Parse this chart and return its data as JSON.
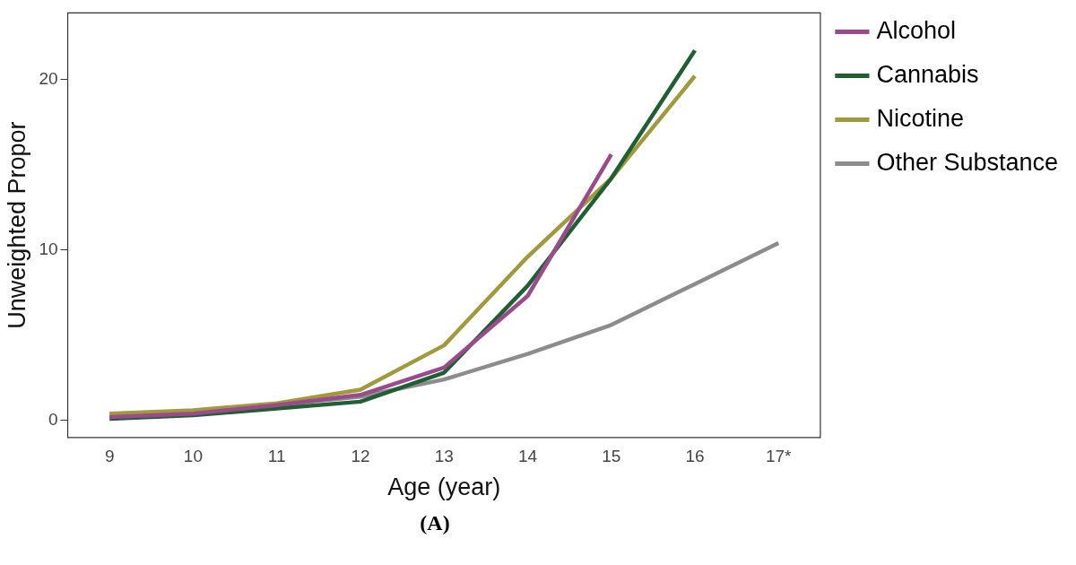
{
  "chart_data": {
    "type": "line",
    "xlabel": "Age (year)",
    "ylabel": "Unweighted Propor",
    "categories": [
      "9",
      "10",
      "11",
      "12",
      "13",
      "14",
      "15",
      "16",
      "17*"
    ],
    "series": [
      {
        "name": "Alcohol",
        "color": "#9c4a8e",
        "values": [
          0.2,
          0.4,
          0.9,
          1.5,
          3.1,
          7.3,
          15.6,
          null,
          null
        ]
      },
      {
        "name": "Cannabis",
        "color": "#1f5f32",
        "values": [
          0.1,
          0.3,
          0.7,
          1.1,
          2.8,
          7.9,
          14.2,
          21.7,
          null
        ]
      },
      {
        "name": "Nicotine",
        "color": "#a09a3c",
        "values": [
          0.4,
          0.6,
          1.0,
          1.8,
          4.4,
          9.6,
          14.2,
          20.2,
          null
        ]
      },
      {
        "name": "Other Substance",
        "color": "#8c8c8c",
        "values": [
          0.2,
          0.4,
          0.9,
          1.4,
          2.4,
          3.9,
          5.6,
          8.0,
          10.4
        ]
      }
    ],
    "ylim": [
      -1,
      23.9
    ],
    "yticks": [
      0,
      10,
      20
    ],
    "legend": "right",
    "marker": "none",
    "line_style": "solid",
    "annotations": [
      "(A)"
    ]
  }
}
